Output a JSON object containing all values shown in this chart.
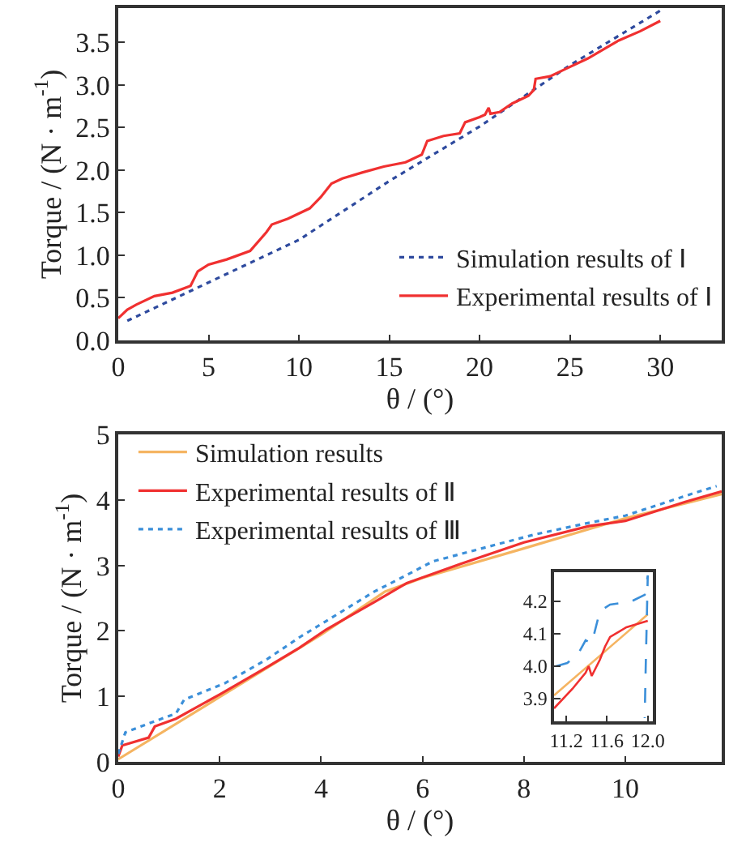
{
  "chart_data": [
    {
      "type": "line",
      "xlabel": "θ / (°)",
      "ylabel": "Torque / (N · m$^{-1}$)",
      "xlim": [
        0,
        33.4
      ],
      "ylim": [
        0,
        3.9
      ],
      "xticks": [
        0,
        5,
        10,
        15,
        20,
        25,
        30
      ],
      "yticks": [
        {
          "value": 0,
          "label": "0.0"
        },
        0.5,
        {
          "value": 1,
          "label": "1.0"
        },
        1.5,
        {
          "value": 2,
          "label": "2.0"
        },
        2.5,
        {
          "value": 3,
          "label": "3.0"
        },
        3.5
      ],
      "grid": false,
      "legend": "bottom right",
      "series": [
        {
          "name": "Simulation results of Ⅰ",
          "color": "#2e4a9e",
          "line_style": "dotted",
          "x": [
            0.5,
            10,
            15,
            20,
            25,
            30
          ],
          "values": [
            0.23,
            1.18,
            1.87,
            2.51,
            3.23,
            3.87
          ]
        },
        {
          "name": "Experimental results of Ⅰ",
          "color": "#f03030",
          "line_style": "solid",
          "x": [
            0,
            0.5,
            1,
            2,
            3,
            4,
            4.4,
            5,
            6,
            7.3,
            8.2,
            8.5,
            9.4,
            10.6,
            11.2,
            11.8,
            12.4,
            13.5,
            14.7,
            15.9,
            16.8,
            17.1,
            18,
            18.9,
            19.2,
            20,
            20.3,
            20.5,
            20.6,
            21.1,
            21.8,
            22.7,
            23,
            23.1,
            23.9,
            24.8,
            26,
            26.8,
            27.7,
            28.9,
            30
          ],
          "values": [
            0.26,
            0.36,
            0.42,
            0.52,
            0.56,
            0.64,
            0.81,
            0.89,
            0.95,
            1.05,
            1.27,
            1.36,
            1.43,
            1.55,
            1.68,
            1.84,
            1.9,
            1.97,
            2.04,
            2.09,
            2.18,
            2.34,
            2.4,
            2.43,
            2.56,
            2.62,
            2.65,
            2.73,
            2.66,
            2.68,
            2.78,
            2.87,
            2.94,
            3.07,
            3.1,
            3.19,
            3.31,
            3.41,
            3.52,
            3.63,
            3.75
          ]
        }
      ]
    },
    {
      "type": "line",
      "xlabel": "θ / (°)",
      "ylabel": "Torque / (N · m$^{-1}$)",
      "xlim": [
        0,
        11.9
      ],
      "ylim": [
        0,
        5
      ],
      "xticks": [
        0,
        2,
        4,
        6,
        8,
        10
      ],
      "yticks": [
        0,
        1,
        2,
        3,
        4,
        5
      ],
      "grid": false,
      "legend": "top left",
      "series": [
        {
          "name": "Simulation results",
          "color": "#f5b461",
          "line_style": "solid",
          "x": [
            0,
            2,
            4,
            5.26,
            6,
            8,
            10,
            11.3,
            11.9
          ],
          "values": [
            0.04,
            0.99,
            1.94,
            2.6,
            2.81,
            3.26,
            3.72,
            3.97,
            4.09
          ]
        },
        {
          "name": "Experimental results of Ⅱ",
          "color": "#f03030",
          "line_style": "solid",
          "x": [
            0,
            0.08,
            0.6,
            0.72,
            1.14,
            2,
            2.94,
            3.57,
            4.1,
            5.05,
            5.69,
            6.74,
            8,
            9.28,
            10,
            11.18,
            11.9
          ],
          "values": [
            0.08,
            0.25,
            0.37,
            0.54,
            0.66,
            1.03,
            1.45,
            1.74,
            2.02,
            2.44,
            2.73,
            3.02,
            3.35,
            3.6,
            3.68,
            3.97,
            4.13
          ]
        },
        {
          "name": "Experimental results of Ⅲ",
          "color": "#3b8fd9",
          "line_style": "dotted",
          "x": [
            0,
            0.14,
            0.72,
            1.14,
            1.3,
            2.1,
            2.94,
            3.57,
            4.1,
            5.05,
            5.58,
            6.2,
            7.17,
            8.2,
            9.28,
            10,
            11.3,
            11.8
          ],
          "values": [
            0.12,
            0.45,
            0.62,
            0.74,
            0.95,
            1.2,
            1.57,
            1.9,
            2.15,
            2.6,
            2.81,
            3.06,
            3.26,
            3.47,
            3.65,
            3.76,
            4.09,
            4.21
          ]
        }
      ]
    },
    {
      "type": "line",
      "xlim": [
        11.08,
        12.05
      ],
      "ylim": [
        3.83,
        4.29
      ],
      "xticks": [
        11.2,
        11.6,
        {
          "value": 12,
          "label": "12.0"
        }
      ],
      "yticks": [
        3.9,
        {
          "value": 4,
          "label": "4.0"
        },
        4.1,
        4.2
      ],
      "grid": false,
      "legend": false,
      "series": [
        {
          "color": "#f5b461",
          "line_style": "solid",
          "x": [
            11.08,
            12.0
          ],
          "values": [
            3.91,
            4.16
          ]
        },
        {
          "color": "#f03030",
          "line_style": "solid",
          "x": [
            11.08,
            11.26,
            11.39,
            11.42,
            11.45,
            11.53,
            11.58,
            11.63,
            11.79,
            12.0
          ],
          "values": [
            3.87,
            3.93,
            3.98,
            4.0,
            3.97,
            4.02,
            4.06,
            4.09,
            4.12,
            4.14
          ]
        },
        {
          "color": "#3b8fd9",
          "line_style": "dashed",
          "x": [
            11.1,
            11.21,
            11.32,
            11.39,
            11.45,
            11.53,
            11.63,
            11.84,
            11.97,
            12.0,
            11.98,
            11.97
          ],
          "values": [
            4.0,
            4.01,
            4.04,
            4.08,
            4.07,
            4.17,
            4.19,
            4.2,
            4.22,
            4.28,
            4.0,
            3.84
          ]
        }
      ]
    }
  ]
}
